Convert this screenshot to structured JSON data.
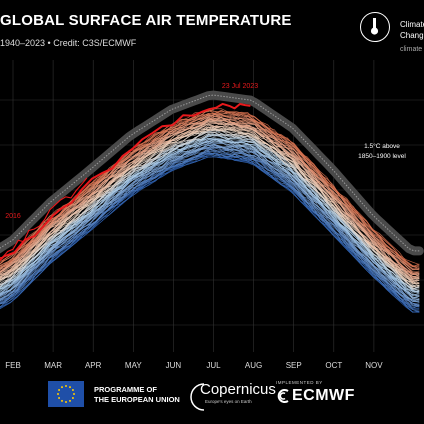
{
  "header": {
    "title": "GLOBAL SURFACE AIR TEMPERATURE",
    "subtitle": "1940–2023 • Credit: C3S/ECMWF"
  },
  "brand": {
    "line1": "Climate",
    "line2": "Change",
    "url": "climate"
  },
  "footer": {
    "eu_line1": "PROGRAMME OF",
    "eu_line2": "THE EUROPEAN UNION",
    "copernicus": "Copernicus",
    "copernicus_tagline": "Europe's eyes on Earth",
    "ecmwf_small": "IMPLEMENTED BY",
    "ecmwf": "ECMWF"
  },
  "colors": {
    "highlight": "#e8191c",
    "early_years": "#6baed6",
    "recent_years": "#f4a582",
    "band": "#555555"
  },
  "chart_data": {
    "type": "line",
    "x_ticks": [
      "FEB",
      "MAR",
      "APR",
      "MAY",
      "JUN",
      "JUL",
      "AUG",
      "SEP",
      "OCT",
      "NOV"
    ],
    "annotations": {
      "peak": "23 Jul 2023",
      "year_2016": "2016",
      "band_label_line1": "1.5°C above",
      "band_label_line2": "1850–1900 level"
    },
    "grid": true,
    "series_years": [
      1940,
      2023
    ],
    "highlight_series": {
      "name": "2023",
      "x": [
        "Jan 10",
        "Jan 25",
        "Feb 10",
        "Feb 25",
        "Mar 10",
        "Mar 25",
        "Apr 10",
        "Apr 25",
        "May 10",
        "May 25",
        "Jun 10",
        "Jun 25",
        "Jul 5",
        "Jul 15",
        "Jul 23",
        "Jul 31"
      ],
      "y": [
        0.11,
        0.18,
        0.27,
        0.35,
        0.44,
        0.54,
        0.63,
        0.72,
        0.81,
        0.88,
        0.94,
        0.96,
        0.98,
        0.99,
        1.0,
        0.99
      ]
    },
    "ensemble_envelope": {
      "x": [
        "Jan 10",
        "Feb 1",
        "Mar 1",
        "Apr 1",
        "May 1",
        "Jun 1",
        "Jul 1",
        "Aug 1",
        "Sep 1",
        "Oct 1",
        "Nov 1",
        "Nov 30"
      ],
      "upper": [
        0.12,
        0.22,
        0.42,
        0.6,
        0.78,
        0.92,
        1.0,
        0.97,
        0.82,
        0.6,
        0.35,
        0.16
      ],
      "lower": [
        -0.15,
        -0.06,
        0.14,
        0.32,
        0.5,
        0.64,
        0.72,
        0.68,
        0.52,
        0.3,
        0.07,
        -0.12
      ]
    }
  }
}
